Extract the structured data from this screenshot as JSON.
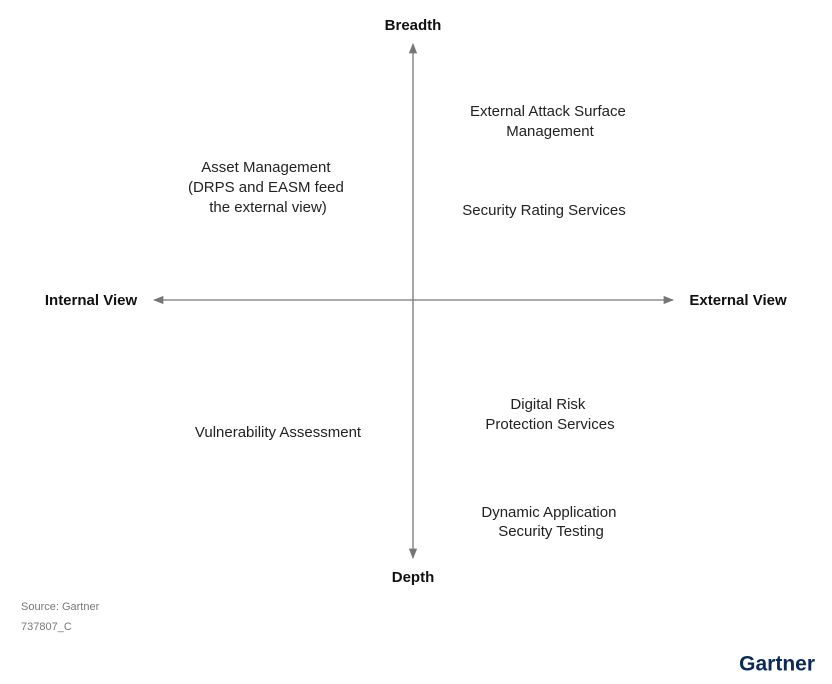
{
  "axes": {
    "top": "Breadth",
    "bottom": "Depth",
    "left": "Internal View",
    "right": "External View"
  },
  "items": [
    {
      "lines": [
        "External Attack Surface",
        "Management"
      ]
    },
    {
      "lines": [
        "Asset Management",
        "(DRPS and EASM feed",
        "the external view)"
      ]
    },
    {
      "lines": [
        "Security Rating Services"
      ]
    },
    {
      "lines": [
        "Vulnerability Assessment"
      ]
    },
    {
      "lines": [
        "Digital Risk",
        "Protection Services"
      ]
    },
    {
      "lines": [
        "Dynamic Application",
        "Security Testing"
      ]
    }
  ],
  "footer": {
    "source": "Source: Gartner",
    "id": "737807_C",
    "logo": "Gartner"
  }
}
